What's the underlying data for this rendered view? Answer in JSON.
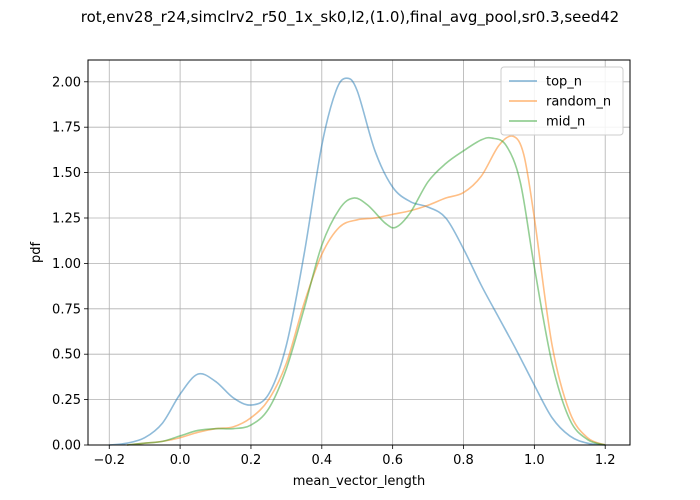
{
  "chart_data": {
    "type": "line",
    "title": "rot,env28_r24,simclrv2_r50_1x_sk0,l2,(1.0),final_avg_pool,sr0.3,seed42",
    "xlabel": "mean_vector_length",
    "ylabel": "pdf",
    "xlim": [
      -0.26,
      1.27
    ],
    "ylim": [
      0,
      2.12
    ],
    "xticks": [
      -0.2,
      0.0,
      0.2,
      0.4,
      0.6,
      0.8,
      1.0,
      1.2
    ],
    "xtick_labels": [
      "−0.2",
      "0.0",
      "0.2",
      "0.4",
      "0.6",
      "0.8",
      "1.0",
      "1.2"
    ],
    "yticks": [
      0.0,
      0.25,
      0.5,
      0.75,
      1.0,
      1.25,
      1.5,
      1.75,
      2.0
    ],
    "ytick_labels": [
      "0.00",
      "0.25",
      "0.50",
      "0.75",
      "1.00",
      "1.25",
      "1.50",
      "1.75",
      "2.00"
    ],
    "grid": true,
    "legend_position": "top-right",
    "series": [
      {
        "name": "top_n",
        "color": "#1f77b4",
        "x": [
          -0.2,
          -0.15,
          -0.1,
          -0.05,
          0.0,
          0.05,
          0.1,
          0.15,
          0.2,
          0.25,
          0.3,
          0.35,
          0.4,
          0.44,
          0.47,
          0.5,
          0.55,
          0.6,
          0.65,
          0.7,
          0.75,
          0.8,
          0.85,
          0.9,
          0.95,
          1.0,
          1.05,
          1.1,
          1.15,
          1.2
        ],
        "y": [
          0.0,
          0.01,
          0.04,
          0.12,
          0.28,
          0.39,
          0.35,
          0.26,
          0.22,
          0.28,
          0.55,
          1.05,
          1.65,
          1.95,
          2.02,
          1.95,
          1.62,
          1.42,
          1.34,
          1.31,
          1.25,
          1.08,
          0.88,
          0.7,
          0.52,
          0.33,
          0.15,
          0.05,
          0.01,
          0.0
        ]
      },
      {
        "name": "random_n",
        "color": "#ff7f0e",
        "x": [
          -0.15,
          -0.1,
          -0.05,
          0.0,
          0.05,
          0.1,
          0.15,
          0.2,
          0.25,
          0.3,
          0.35,
          0.4,
          0.45,
          0.5,
          0.55,
          0.6,
          0.65,
          0.7,
          0.75,
          0.8,
          0.85,
          0.9,
          0.94,
          0.97,
          1.0,
          1.05,
          1.1,
          1.15,
          1.2
        ],
        "y": [
          0.0,
          0.01,
          0.02,
          0.04,
          0.07,
          0.09,
          0.1,
          0.15,
          0.25,
          0.45,
          0.78,
          1.05,
          1.2,
          1.24,
          1.25,
          1.27,
          1.29,
          1.32,
          1.36,
          1.39,
          1.48,
          1.65,
          1.7,
          1.6,
          1.25,
          0.55,
          0.18,
          0.04,
          0.0
        ]
      },
      {
        "name": "mid_n",
        "color": "#2ca02c",
        "x": [
          -0.15,
          -0.1,
          -0.05,
          0.0,
          0.05,
          0.1,
          0.15,
          0.2,
          0.25,
          0.3,
          0.35,
          0.4,
          0.45,
          0.49,
          0.53,
          0.58,
          0.61,
          0.65,
          0.7,
          0.75,
          0.8,
          0.85,
          0.88,
          0.92,
          0.96,
          1.0,
          1.05,
          1.1,
          1.15,
          1.2
        ],
        "y": [
          0.0,
          0.01,
          0.02,
          0.05,
          0.08,
          0.09,
          0.09,
          0.11,
          0.2,
          0.42,
          0.75,
          1.1,
          1.3,
          1.36,
          1.32,
          1.22,
          1.2,
          1.28,
          1.45,
          1.55,
          1.62,
          1.68,
          1.69,
          1.65,
          1.45,
          0.98,
          0.45,
          0.14,
          0.03,
          0.0
        ]
      }
    ]
  }
}
